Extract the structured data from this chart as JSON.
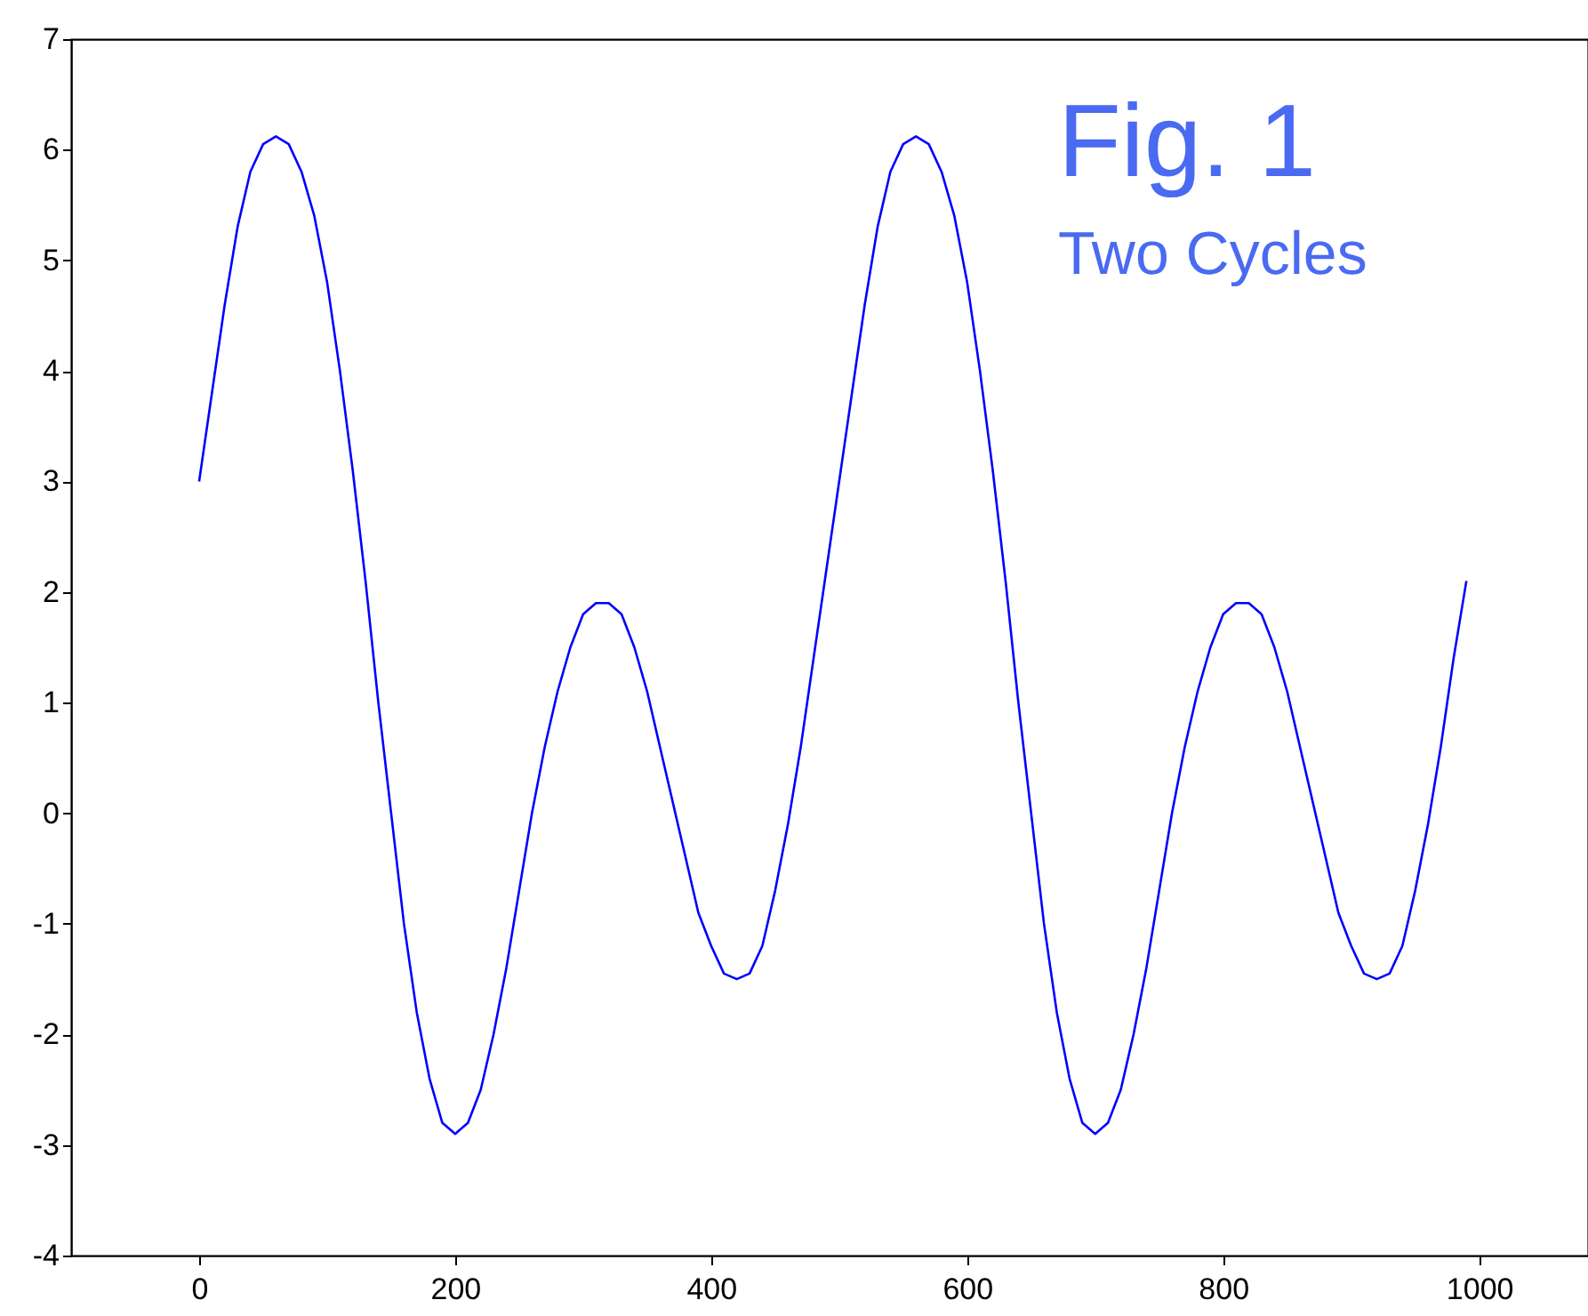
{
  "chart_data": {
    "type": "line",
    "annotations": [
      "Fig. 1",
      "Two Cycles"
    ],
    "xlim": [
      -100,
      1085
    ],
    "xticks": [
      0,
      200,
      400,
      600,
      800,
      1000
    ],
    "ylim": [
      -4,
      7
    ],
    "yticks": [
      -4,
      -3,
      -2,
      -1,
      0,
      1,
      2,
      3,
      4,
      5,
      6,
      7
    ],
    "grid": false,
    "marker": "none",
    "line_style": "solid",
    "series": [
      {
        "color": "#0000ff",
        "x": [
          0,
          10,
          20,
          30,
          40,
          50,
          60,
          70,
          80,
          90,
          100,
          110,
          120,
          130,
          140,
          150,
          160,
          170,
          180,
          190,
          200,
          210,
          220,
          230,
          240,
          250,
          260,
          270,
          280,
          290,
          300,
          310,
          320,
          330,
          340,
          350,
          360,
          370,
          380,
          390,
          400,
          410,
          420,
          430,
          440,
          450,
          460,
          470,
          480,
          490,
          500,
          510,
          520,
          530,
          540,
          550,
          560,
          570,
          580,
          590,
          600,
          610,
          620,
          630,
          640,
          650,
          660,
          670,
          680,
          690,
          700,
          710,
          720,
          730,
          740,
          750,
          760,
          770,
          780,
          790,
          800,
          810,
          820,
          830,
          840,
          850,
          860,
          870,
          880,
          890,
          900,
          910,
          920,
          930,
          940,
          950,
          960,
          970,
          980,
          990
        ],
        "values": [
          3.0,
          3.8,
          4.6,
          5.3,
          5.8,
          6.05,
          6.12,
          6.05,
          5.8,
          5.4,
          4.8,
          4.0,
          3.1,
          2.1,
          1.0,
          0.0,
          -1.0,
          -1.8,
          -2.4,
          -2.8,
          -2.9,
          -2.8,
          -2.5,
          -2.0,
          -1.4,
          -0.7,
          0.0,
          0.6,
          1.1,
          1.5,
          1.8,
          1.9,
          1.9,
          1.8,
          1.5,
          1.1,
          0.6,
          0.1,
          -0.4,
          -0.9,
          -1.2,
          -1.45,
          -1.5,
          -1.45,
          -1.2,
          -0.7,
          -0.1,
          0.6,
          1.4,
          2.2,
          3.0,
          3.8,
          4.6,
          5.3,
          5.8,
          6.05,
          6.12,
          6.05,
          5.8,
          5.4,
          4.8,
          4.0,
          3.1,
          2.1,
          1.0,
          0.0,
          -1.0,
          -1.8,
          -2.4,
          -2.8,
          -2.9,
          -2.8,
          -2.5,
          -2.0,
          -1.4,
          -0.7,
          0.0,
          0.6,
          1.1,
          1.5,
          1.8,
          1.9,
          1.9,
          1.8,
          1.5,
          1.1,
          0.6,
          0.1,
          -0.4,
          -0.9,
          -1.2,
          -1.45,
          -1.5,
          -1.45,
          -1.2,
          -0.7,
          -0.1,
          0.6,
          1.4,
          2.1
        ]
      }
    ]
  }
}
